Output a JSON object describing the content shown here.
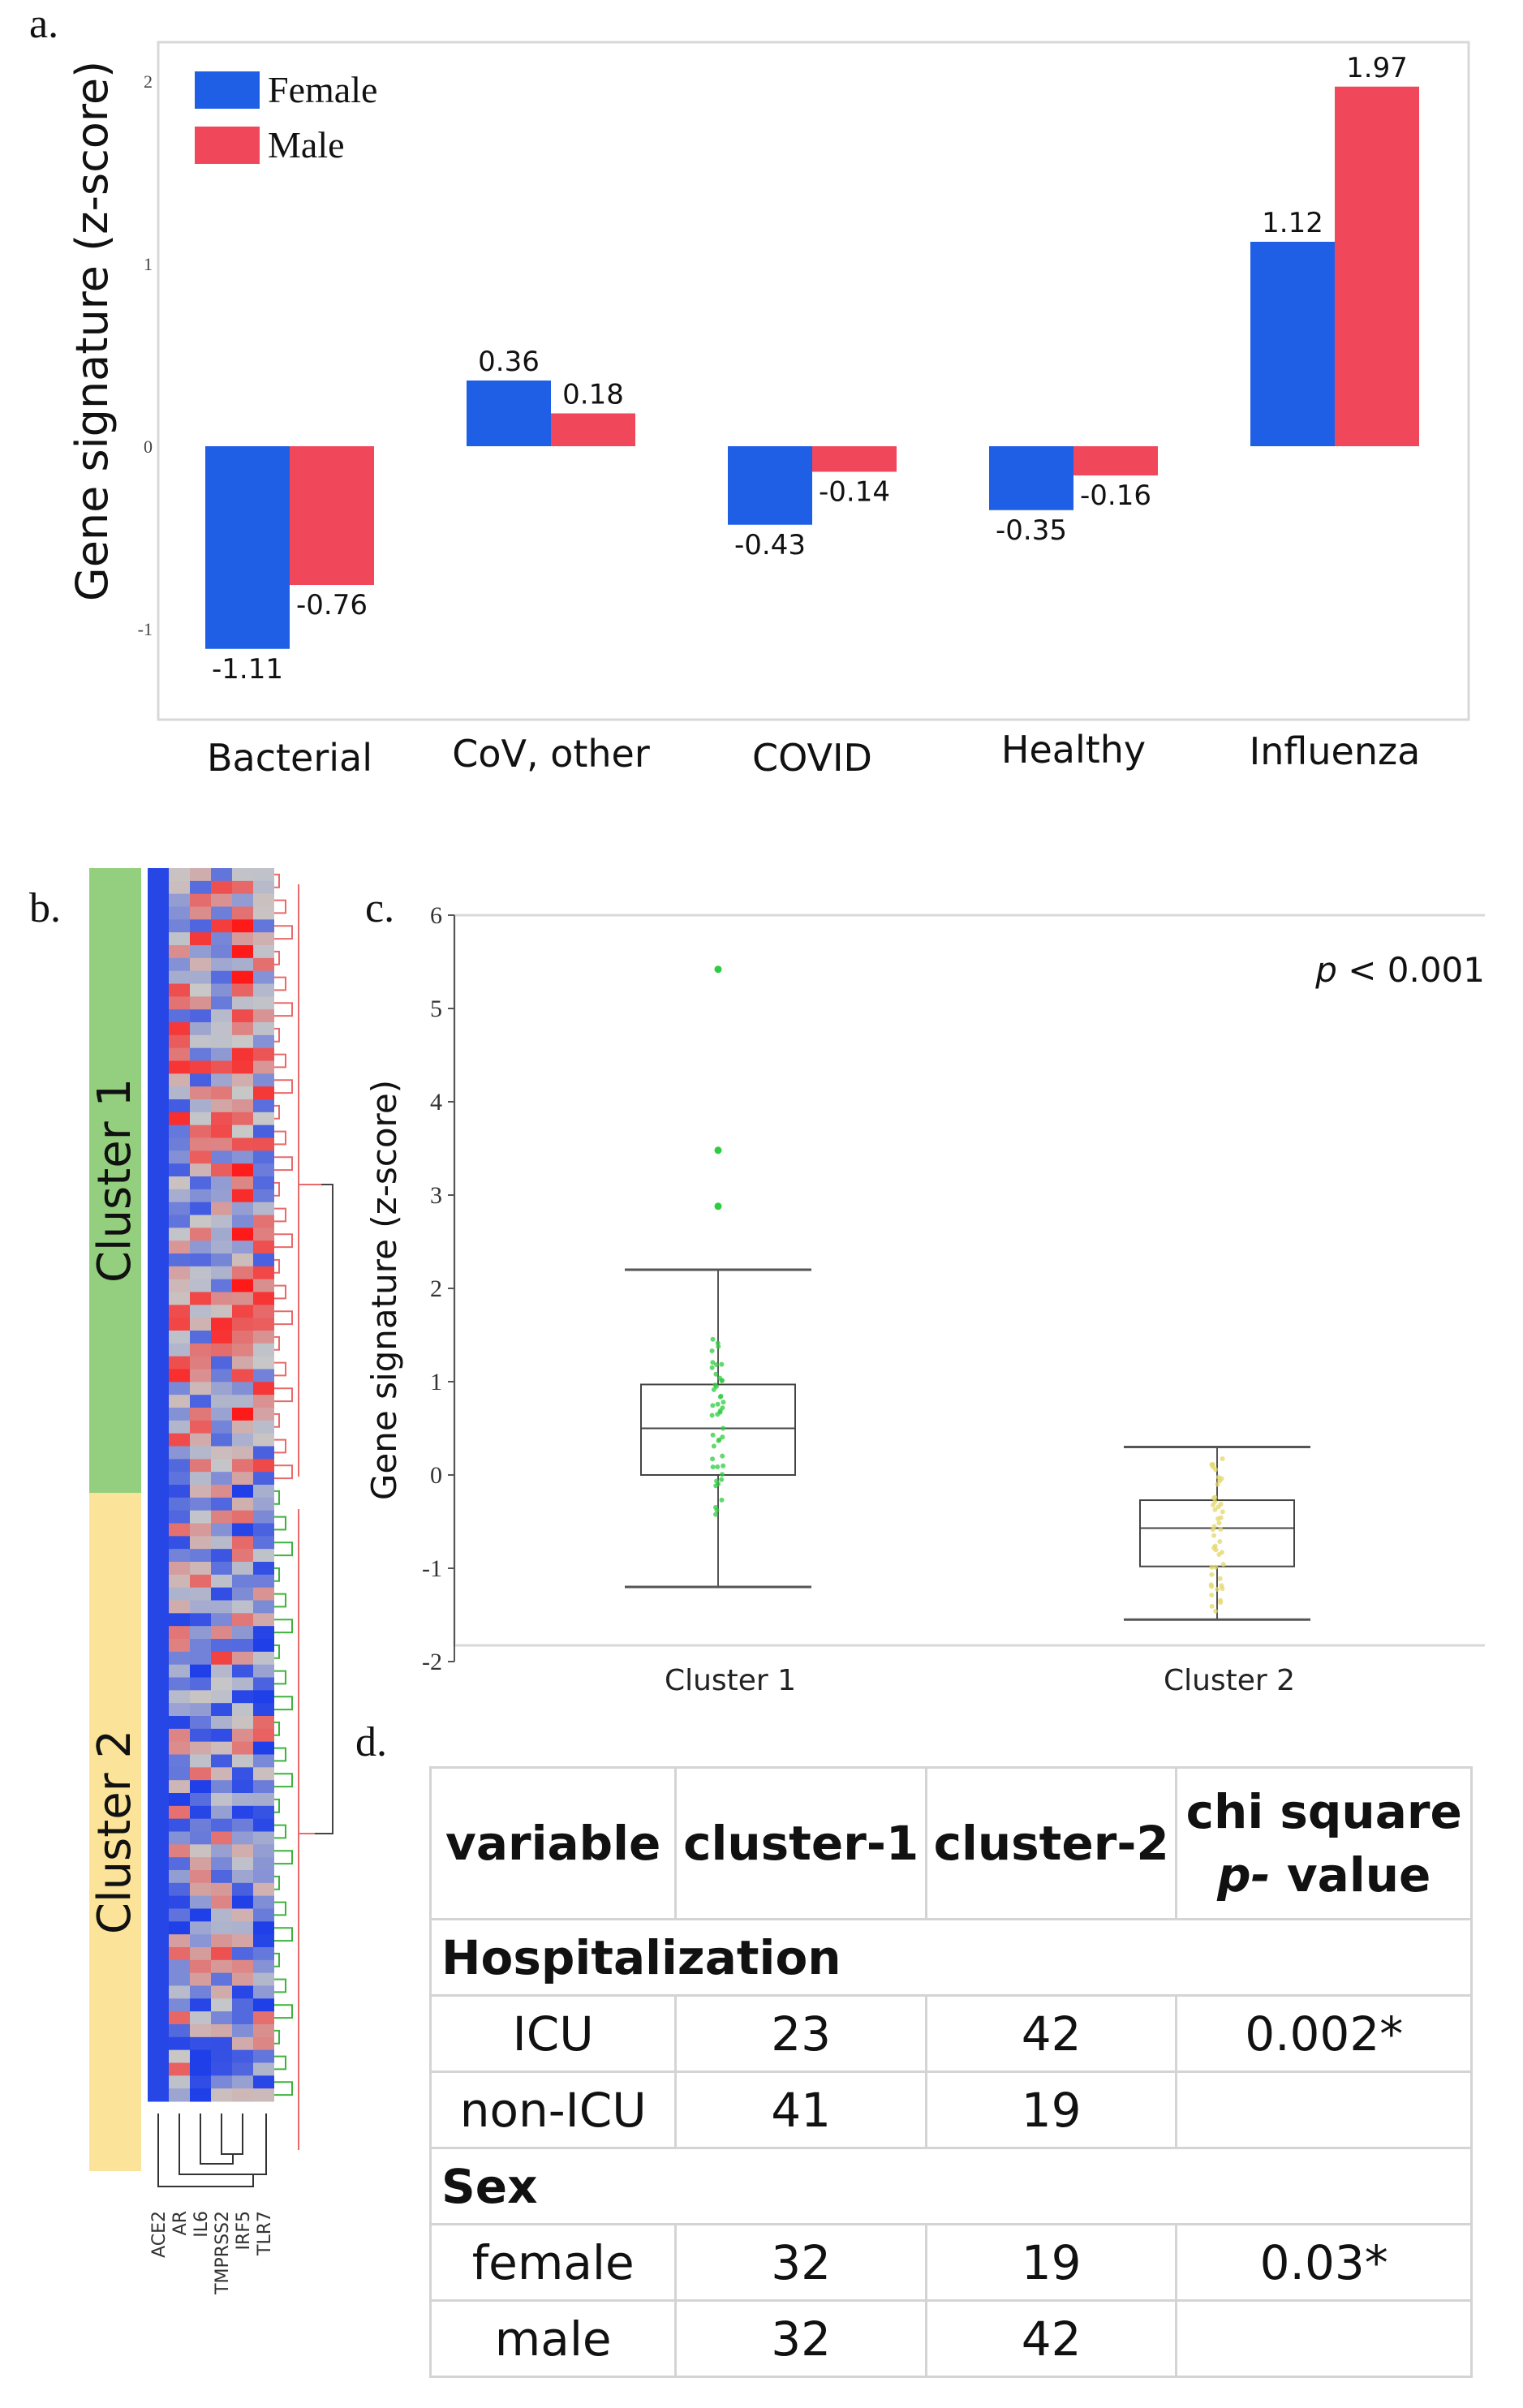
{
  "panel_labels": {
    "a": "a.",
    "b": "b.",
    "c": "c.",
    "d": "d."
  },
  "chart_data": [
    {
      "panel": "a",
      "type": "bar",
      "title": "",
      "xlabel": "",
      "ylabel": "Gene signature (z-score)",
      "ylim": [
        -1.5,
        2.2
      ],
      "yticks": [
        "-1",
        "0",
        "1",
        "2"
      ],
      "categories": [
        "Bacterial",
        "CoV, other",
        "COVID",
        "Healthy",
        "Influenza"
      ],
      "series": [
        {
          "name": "Female",
          "color": "#1f5fe6",
          "values": [
            -1.11,
            0.36,
            -0.43,
            -0.35,
            1.12
          ],
          "labels": [
            "-1.11",
            "0.36",
            "-0.43",
            "-0.35",
            "1.12"
          ]
        },
        {
          "name": "Male",
          "color": "#f0485a",
          "values": [
            -0.76,
            0.18,
            -0.14,
            -0.16,
            1.97
          ],
          "labels": [
            "-0.76",
            "0.18",
            "-0.14",
            "-0.16",
            "1.97"
          ]
        }
      ],
      "legend": "top-left"
    },
    {
      "panel": "b",
      "type": "heatmap",
      "clusters": [
        {
          "name": "Cluster 1",
          "color": "#93cf7e"
        },
        {
          "name": "Cluster 2",
          "color": "#fbe39a"
        }
      ],
      "genes": [
        "ACE2",
        "AR",
        "IL6",
        "TMPRSS2",
        "IRF5",
        "TLR7"
      ],
      "colors": {
        "low": "#1f3fe8",
        "mid": "#c8c8c8",
        "high": "#ff1a1a"
      }
    },
    {
      "panel": "c",
      "type": "box",
      "ylabel": "Gene signature (z-score)",
      "ylim": [
        -2,
        6
      ],
      "yticks": [
        "-2",
        "-1",
        "0",
        "1",
        "2",
        "3",
        "4",
        "5",
        "6"
      ],
      "annotation": "p < 0.001",
      "annotation_italic": "p",
      "annotation_rest": " < 0.001",
      "groups": [
        {
          "name": "Cluster 1",
          "color": "#2ecc40",
          "min": -1.2,
          "q1": 0.0,
          "median": 0.5,
          "q3": 0.97,
          "max": 2.2,
          "outliers": [
            2.88,
            3.48,
            5.42
          ]
        },
        {
          "name": "Cluster 2",
          "color": "#e3d76a",
          "min": -1.55,
          "q1": -0.98,
          "median": -0.57,
          "q3": -0.27,
          "max": 0.3,
          "outliers": []
        }
      ]
    }
  ],
  "table": {
    "headers": [
      "variable",
      "cluster-1",
      "cluster-2",
      "chi square",
      "p-",
      "value"
    ],
    "sections": [
      {
        "title": "Hospitalization",
        "rows": [
          {
            "label": "ICU",
            "c1": "23",
            "c2": "42",
            "p": "0.002*"
          },
          {
            "label": "non-ICU",
            "c1": "41",
            "c2": "19",
            "p": ""
          }
        ]
      },
      {
        "title": "Sex",
        "rows": [
          {
            "label": "female",
            "c1": "32",
            "c2": "19",
            "p": "0.03*"
          },
          {
            "label": "male",
            "c1": "32",
            "c2": "42",
            "p": ""
          }
        ]
      }
    ]
  }
}
